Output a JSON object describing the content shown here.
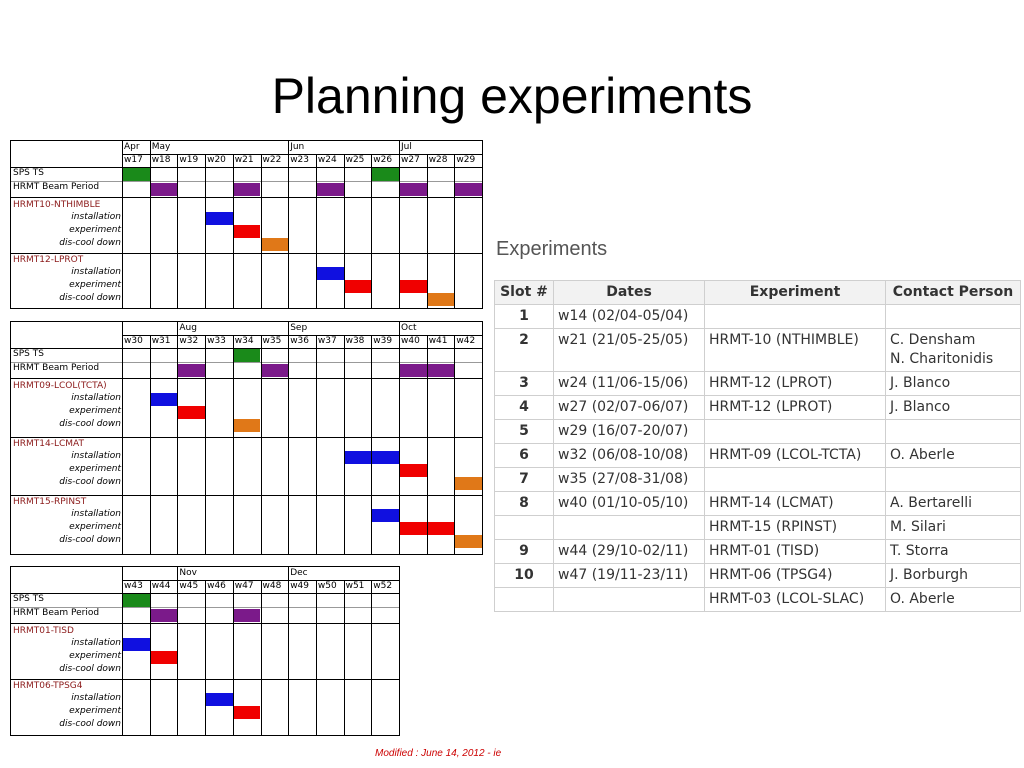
{
  "title": "Planning experiments",
  "colors": {
    "sps_ts": "#1a8a1a",
    "beam": "#7b1a8a",
    "installation": "#1010e0",
    "experiment": "#f00000",
    "cool": "#e07818"
  },
  "gantt_tables": [
    {
      "months": [
        {
          "label": "Apr",
          "col": 0
        },
        {
          "label": "May",
          "col": 1
        },
        {
          "label": "Jun",
          "col": 6
        },
        {
          "label": "Jul",
          "col": 10
        }
      ],
      "weeks": [
        "w17",
        "w18",
        "w19",
        "w20",
        "w21",
        "w22",
        "w23",
        "w24",
        "w25",
        "w26",
        "w27",
        "w28",
        "w29"
      ],
      "sps_label": "SPS TS",
      "beam_label": "HRMT Beam Period",
      "sps_cols": [
        0,
        9
      ],
      "beam_cols": [
        1,
        4,
        7,
        10,
        12
      ],
      "experiments": [
        {
          "name": "HRMT10-NTHIMBLE",
          "installation": [
            3
          ],
          "experiment": [
            4
          ],
          "cool": [
            5
          ]
        },
        {
          "name": "HRMT12-LPROT",
          "installation": [
            7
          ],
          "experiment": [
            8,
            10
          ],
          "cool": [
            11
          ]
        }
      ]
    },
    {
      "months": [
        {
          "label": "Aug",
          "col": 2
        },
        {
          "label": "Sep",
          "col": 6
        },
        {
          "label": "Oct",
          "col": 10
        }
      ],
      "weeks": [
        "w30",
        "w31",
        "w32",
        "w33",
        "w34",
        "w35",
        "w36",
        "w37",
        "w38",
        "w39",
        "w40",
        "w41",
        "w42"
      ],
      "sps_label": "SPS TS",
      "beam_label": "HRMT Beam Period",
      "sps_cols": [
        4
      ],
      "beam_cols": [
        2,
        5,
        10,
        11
      ],
      "experiments": [
        {
          "name": "HRMT09-LCOL(TCTA)",
          "installation": [
            1
          ],
          "experiment": [
            2
          ],
          "cool": [
            4
          ]
        },
        {
          "name": "HRMT14-LCMAT",
          "installation": [
            8,
            9
          ],
          "experiment": [
            10
          ],
          "cool": [
            12
          ]
        },
        {
          "name": "HRMT15-RPINST",
          "installation": [
            9
          ],
          "experiment": [
            10,
            11
          ],
          "cool": [
            12
          ]
        }
      ]
    },
    {
      "months": [
        {
          "label": "Nov",
          "col": 2
        },
        {
          "label": "Dec",
          "col": 6
        }
      ],
      "weeks": [
        "w43",
        "w44",
        "w45",
        "w46",
        "w47",
        "w48",
        "w49",
        "w50",
        "w51",
        "w52"
      ],
      "sps_label": "SPS TS",
      "beam_label": "HRMT Beam Period",
      "sps_cols": [
        0
      ],
      "beam_cols": [
        1,
        4
      ],
      "experiments": [
        {
          "name": "HRMT01-TISD",
          "installation": [
            0
          ],
          "experiment": [
            1
          ],
          "cool": []
        },
        {
          "name": "HRMT06-TPSG4",
          "installation": [
            3
          ],
          "experiment": [
            4
          ],
          "cool": []
        }
      ]
    }
  ],
  "sub_labels": {
    "installation": "installation",
    "experiment": "experiment",
    "cool": "dis-cool down"
  },
  "experiments_heading": "Experiments",
  "table": {
    "headers": [
      "Slot #",
      "Dates",
      "Experiment",
      "Contact Person"
    ],
    "rows": [
      [
        "1",
        "w14 (02/04-05/04)",
        "",
        ""
      ],
      [
        "2",
        "w21 (21/05-25/05)",
        "HRMT-10 (NTHIMBLE)",
        "C. Densham\nN. Charitonidis"
      ],
      [
        "3",
        "w24 (11/06-15/06)",
        "HRMT-12 (LPROT)",
        "J. Blanco"
      ],
      [
        "4",
        "w27 (02/07-06/07)",
        "HRMT-12 (LPROT)",
        "J. Blanco"
      ],
      [
        "5",
        "w29 (16/07-20/07)",
        "",
        ""
      ],
      [
        "6",
        "w32 (06/08-10/08)",
        "HRMT-09 (LCOL-TCTA)",
        "O. Aberle"
      ],
      [
        "7",
        "w35 (27/08-31/08)",
        "",
        ""
      ],
      [
        "8",
        "w40 (01/10-05/10)",
        "HRMT-14 (LCMAT)",
        "A. Bertarelli"
      ],
      [
        "",
        "",
        "HRMT-15 (RPINST)",
        "M. Silari"
      ],
      [
        "9",
        "w44 (29/10-02/11)",
        "HRMT-01 (TISD)",
        "T. Storra"
      ],
      [
        "10",
        "w47 (19/11-23/11)",
        "HRMT-06 (TPSG4)",
        "J. Borburgh"
      ],
      [
        "",
        "",
        "HRMT-03 (LCOL-SLAC)",
        "O. Aberle"
      ]
    ]
  },
  "footer_note": "Modified : June 14, 2012 - ie"
}
